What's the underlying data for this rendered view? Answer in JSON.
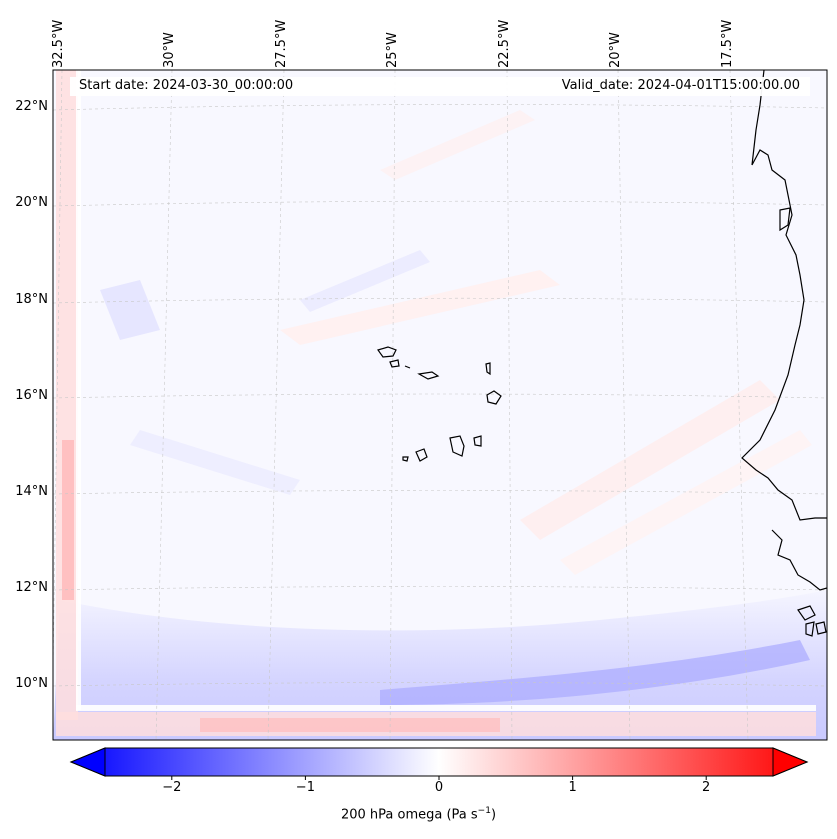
{
  "map": {
    "start_date": "Start date: 2024-03-30_00:00:00",
    "valid_date": "Valid_date: 2024-04-01T15:00:00.00",
    "field": "200 hPa omega",
    "lon_labels": [
      "32.5°W",
      "30°W",
      "27.5°W",
      "25°W",
      "22.5°W",
      "20°W",
      "17.5°W"
    ],
    "lat_labels": [
      "22°N",
      "20°N",
      "18°N",
      "16°N",
      "14°N",
      "12°N",
      "10°N"
    ],
    "features": [
      "Cape Verde islands",
      "West African coastline"
    ],
    "colors": {
      "negative": "#0000ff",
      "zero": "#ffffff",
      "positive": "#ff0000"
    }
  },
  "colorbar": {
    "min": -2.5,
    "max": 2.5,
    "ticks": [
      "−2",
      "−1",
      "0",
      "1",
      "2"
    ],
    "tick_values": [
      -2,
      -1,
      0,
      1,
      2
    ],
    "label": "200 hPa omega (Pa s",
    "label_sup": "−1",
    "label_end": ")"
  }
}
